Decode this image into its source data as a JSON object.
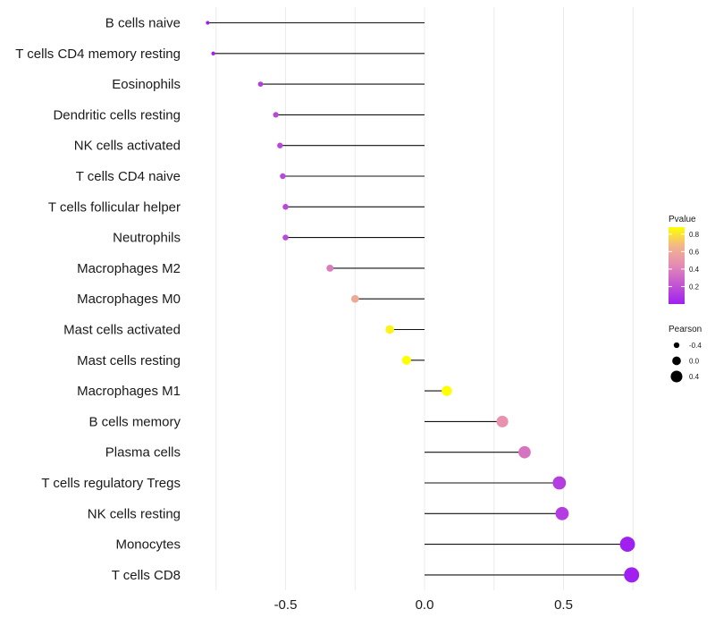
{
  "chart_data": {
    "type": "lollipop",
    "title": "",
    "xlabel": "",
    "ylabel": "",
    "xlim": [
      -0.78,
      0.76
    ],
    "x_ticks": [
      {
        "value": -0.5,
        "label": "-0.5"
      },
      {
        "value": 0.0,
        "label": "0.0"
      },
      {
        "value": 0.5,
        "label": "0.5"
      }
    ],
    "grid": true,
    "categories": [
      "B cells naive",
      "T cells CD4 memory resting",
      "Eosinophils",
      "Dendritic cells resting",
      "NK cells activated",
      "T cells CD4 naive",
      "T cells follicular helper",
      "Neutrophils",
      "Macrophages M2",
      "Macrophages M0",
      "Mast cells activated",
      "Mast cells resting",
      "Macrophages M1",
      "B cells memory",
      "Plasma cells",
      "T cells regulatory  Tregs",
      "NK cells resting",
      "Monocytes",
      "T cells CD8"
    ],
    "pearson": [
      -0.78,
      -0.76,
      -0.59,
      -0.535,
      -0.52,
      -0.51,
      -0.5,
      -0.5,
      -0.34,
      -0.25,
      -0.125,
      -0.065,
      0.08,
      0.28,
      0.36,
      0.485,
      0.495,
      0.73,
      0.745
    ],
    "pvalue": [
      0.001,
      0.001,
      0.12,
      0.16,
      0.16,
      0.17,
      0.17,
      0.17,
      0.38,
      0.6,
      0.84,
      0.9,
      0.88,
      0.48,
      0.35,
      0.12,
      0.12,
      0.001,
      0.001
    ],
    "legend_pvalue": {
      "title": "Pvalue",
      "ticks": [
        {
          "value": 0.8,
          "label": "0.8"
        },
        {
          "value": 0.6,
          "label": "0.6"
        },
        {
          "value": 0.4,
          "label": "0.4"
        },
        {
          "value": 0.2,
          "label": "0.2"
        }
      ],
      "range": [
        0,
        0.88
      ],
      "color_low": "#a020f0",
      "color_high": "#ffff00"
    },
    "legend_pearson": {
      "title": "Pearson",
      "entries": [
        {
          "value": -0.4,
          "label": "-0.4"
        },
        {
          "value": 0.0,
          "label": "0.0"
        },
        {
          "value": 0.4,
          "label": "0.4"
        }
      ]
    }
  }
}
